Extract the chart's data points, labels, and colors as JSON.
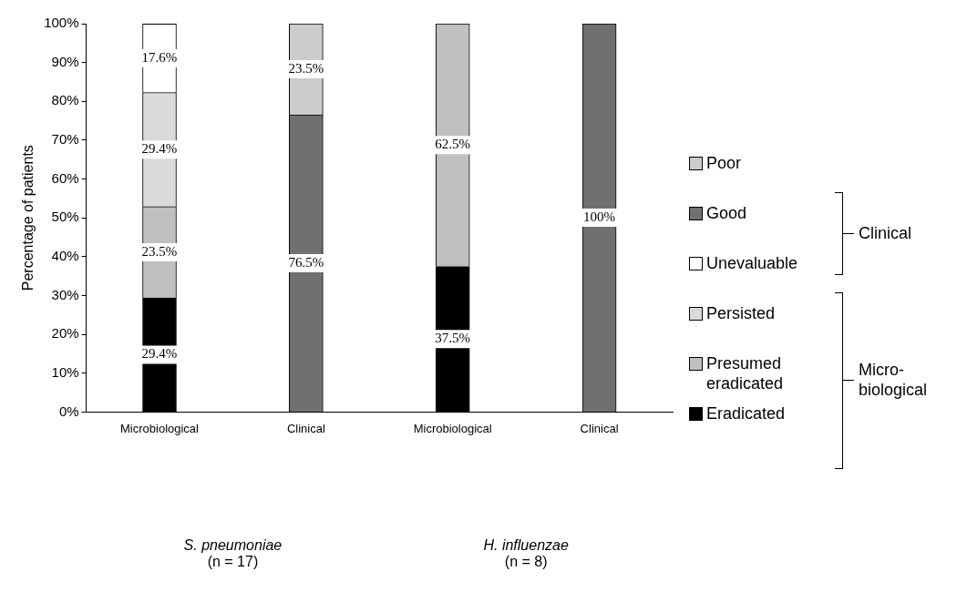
{
  "chart_data": {
    "type": "bar",
    "stacked": true,
    "ylabel": "Percentage of patients",
    "categories": [
      "Microbiological",
      "Clinical",
      "Microbiological",
      "Clinical"
    ],
    "series": [
      {
        "name": "Eradicated",
        "color": "#000000",
        "values": [
          29.4,
          null,
          37.5,
          null
        ],
        "value_labels": [
          "29.4%",
          null,
          "37.5%",
          null
        ]
      },
      {
        "name": "Presumed eradicated",
        "color": "#c0c0c0",
        "values": [
          23.5,
          null,
          62.5,
          null
        ],
        "value_labels": [
          "23.5%",
          null,
          "62.5%",
          null
        ]
      },
      {
        "name": "Persisted",
        "color": "#dadada",
        "values": [
          29.4,
          null,
          null,
          null
        ],
        "value_labels": [
          "29.4%",
          null,
          null,
          null
        ]
      },
      {
        "name": "Unevaluable",
        "color": "#ffffff",
        "values": [
          17.6,
          null,
          null,
          null
        ],
        "value_labels": [
          "17.6%",
          null,
          null,
          null
        ]
      },
      {
        "name": "Good",
        "color": "#707070",
        "values": [
          null,
          76.5,
          null,
          100
        ],
        "value_labels": [
          null,
          "76.5%",
          null,
          "100%"
        ]
      },
      {
        "name": "Poor",
        "color": "#cccccc",
        "values": [
          null,
          23.5,
          null,
          null
        ],
        "value_labels": [
          null,
          "23.5%",
          null,
          null
        ]
      }
    ],
    "ylim": [
      0,
      100
    ],
    "yticks": [
      {
        "value": 0,
        "label": "0%"
      },
      {
        "value": 10,
        "label": "10%"
      },
      {
        "value": 20,
        "label": "20%"
      },
      {
        "value": 30,
        "label": "30%"
      },
      {
        "value": 40,
        "label": "40%"
      },
      {
        "value": 50,
        "label": "50%"
      },
      {
        "value": 60,
        "label": "60%"
      },
      {
        "value": 70,
        "label": "70%"
      },
      {
        "value": 80,
        "label": "80%"
      },
      {
        "value": 90,
        "label": "90%"
      },
      {
        "value": 100,
        "label": "100%"
      }
    ],
    "grid": false,
    "legend": "right",
    "annotations": [
      "S. pneumoniae\n(n = 17)",
      "H. influenzae\n(n = 8)",
      "Clinical",
      "Micro-biological"
    ]
  }
}
